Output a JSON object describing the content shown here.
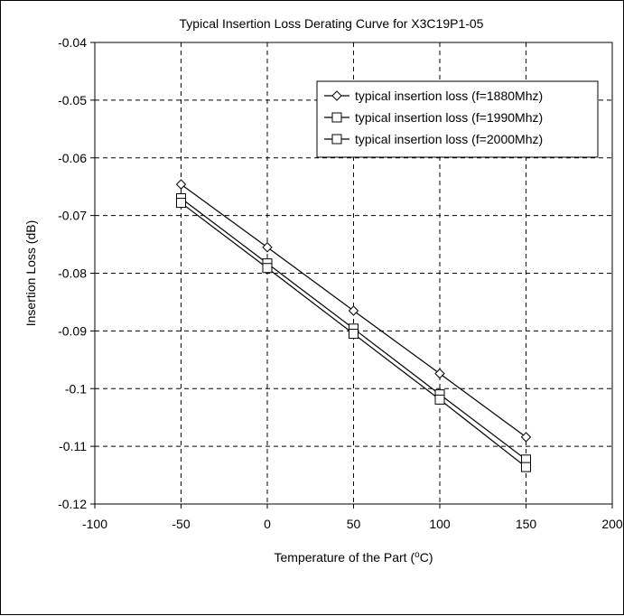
{
  "chart_data": {
    "type": "line",
    "title": "Typical Insertion Loss Derating Curve for X3C19P1-05",
    "xlabel_pre": "Temperature of the Part (",
    "xlabel_sup": "o",
    "xlabel_post": "C)",
    "ylabel": "Insertion Loss (dB)",
    "xlim": [
      -100,
      200
    ],
    "ylim": [
      -0.12,
      -0.04
    ],
    "xticks": [
      -100,
      -50,
      0,
      50,
      100,
      150,
      200
    ],
    "xtick_labels": [
      "-100",
      "-50",
      "0",
      "50",
      "100",
      "150",
      "200"
    ],
    "yticks": [
      -0.04,
      -0.05,
      -0.06,
      -0.07,
      -0.08,
      -0.09,
      -0.1,
      -0.11,
      -0.12
    ],
    "ytick_labels": [
      "-0.04",
      "-0.05",
      "-0.06",
      "-0.07",
      "-0.08",
      "-0.09",
      "-0.1",
      "-0.11",
      "-0.12"
    ],
    "grid": true,
    "legend_position": "top-right",
    "x": [
      -50,
      0,
      50,
      100,
      150
    ],
    "series": [
      {
        "name": "typical insertion loss (f=1880Mhz)",
        "marker": "diamond",
        "values": [
          -0.0646,
          -0.0755,
          -0.0865,
          -0.0974,
          -0.1084
        ]
      },
      {
        "name": "typical insertion loss (f=1990Mhz)",
        "marker": "square",
        "values": [
          -0.067,
          -0.0783,
          -0.0896,
          -0.101,
          -0.1123
        ]
      },
      {
        "name": "typical insertion loss (f=2000Mhz)",
        "marker": "square",
        "values": [
          -0.0678,
          -0.0791,
          -0.0905,
          -0.1019,
          -0.1136
        ]
      }
    ]
  }
}
